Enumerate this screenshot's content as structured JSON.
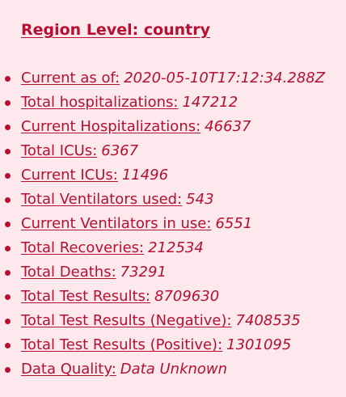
{
  "heading": "Region Level: country",
  "stats": [
    {
      "label": "Current as of:",
      "value": "2020-05-10T17:12:34.288Z"
    },
    {
      "label": "Total hospitalizations:",
      "value": "147212"
    },
    {
      "label": "Current Hospitalizations:",
      "value": "46637"
    },
    {
      "label": "Total ICUs:",
      "value": "6367"
    },
    {
      "label": "Current ICUs:",
      "value": "11496"
    },
    {
      "label": "Total Ventilators used:",
      "value": "543"
    },
    {
      "label": "Current Ventilators in use:",
      "value": "6551"
    },
    {
      "label": "Total Recoveries:",
      "value": "212534"
    },
    {
      "label": "Total Deaths:",
      "value": "73291"
    },
    {
      "label": "Total Test Results:",
      "value": "8709630"
    },
    {
      "label": "Total Test Results (Negative):",
      "value": "7408535"
    },
    {
      "label": "Total Test Results (Positive):",
      "value": "1301095"
    },
    {
      "label": "Data Quality:",
      "value": "Data Unknown"
    }
  ]
}
